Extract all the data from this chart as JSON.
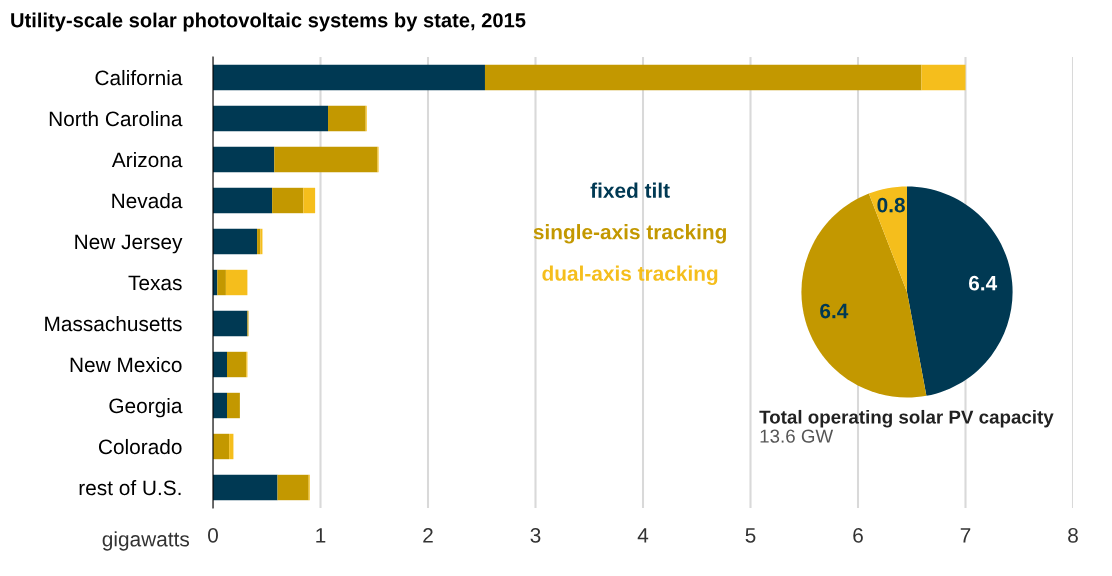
{
  "chart_data": [
    {
      "type": "bar",
      "orientation": "horizontal",
      "stacked": true,
      "title": "Utility-scale solar photovoltaic systems by state, 2015",
      "xlabel": "gigawatts",
      "categories": [
        "California",
        "North Carolina",
        "Arizona",
        "Nevada",
        "New Jersey",
        "Texas",
        "Massachusetts",
        "New Mexico",
        "Georgia",
        "Colorado",
        "rest of U.S."
      ],
      "series": [
        {
          "name": "fixed tilt",
          "color": "#003953",
          "values": [
            2.53,
            1.07,
            0.57,
            0.55,
            0.41,
            0.04,
            0.32,
            0.13,
            0.13,
            0.0,
            0.6
          ]
        },
        {
          "name": "single-axis tracking",
          "color": "#c39800",
          "values": [
            4.06,
            0.35,
            0.96,
            0.29,
            0.03,
            0.08,
            0.01,
            0.18,
            0.12,
            0.15,
            0.29
          ]
        },
        {
          "name": "dual-axis tracking",
          "color": "#f5be1c",
          "values": [
            0.41,
            0.01,
            0.01,
            0.11,
            0.02,
            0.2,
            0.0,
            0.01,
            0.0,
            0.04,
            0.01
          ]
        }
      ],
      "xlim": [
        0,
        8
      ],
      "xticks": [
        0,
        1,
        2,
        3,
        4,
        5,
        6,
        7,
        8
      ],
      "grid": "x",
      "legend": "right"
    },
    {
      "type": "pie",
      "title": "Total operating solar PV capacity",
      "subtitle": "13.6 GW",
      "categories": [
        null,
        null,
        null
      ],
      "values": [
        6.4,
        6.4,
        0.8
      ],
      "colors": [
        "#003953",
        "#c39800",
        "#f5be1c"
      ],
      "data_labels": true
    }
  ]
}
